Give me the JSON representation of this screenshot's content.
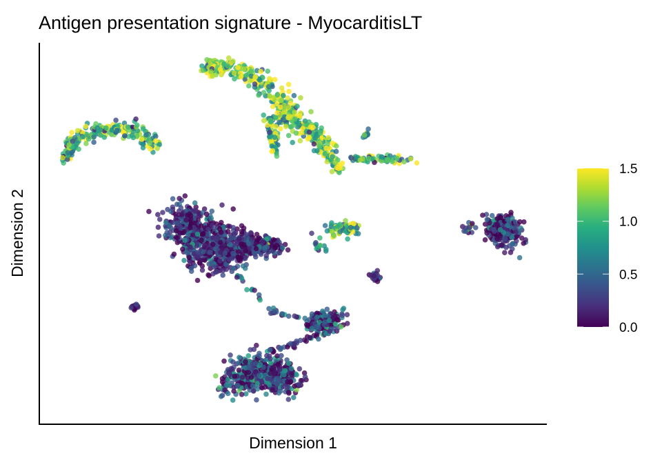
{
  "chart_data": {
    "type": "scatter",
    "title": "Antigen presentation signature - MyocarditisLT",
    "xlabel": "Dimension 1",
    "ylabel": "Dimension 2",
    "xlim": [
      0,
      100
    ],
    "ylim": [
      0,
      100
    ],
    "grid": false,
    "legend": {
      "placement": "right",
      "type": "colorbar",
      "colormap": "viridis",
      "range": [
        0,
        1.5
      ],
      "ticks": [
        0.0,
        0.5,
        1.0,
        1.5
      ],
      "tick_labels": [
        "0.0",
        "0.5",
        "1.0",
        "1.5"
      ]
    },
    "clusters": [
      {
        "name": "top-left-arc",
        "count": 220,
        "value_mean": 1.0,
        "value_sd": 0.45,
        "path": [
          [
            5.2,
            69.6,
            1.4
          ],
          [
            7.2,
            75,
            1.5
          ],
          [
            12.6,
            76.9,
            1.5
          ],
          [
            18.8,
            76.9,
            1.5
          ],
          [
            22.8,
            73.2,
            1.3
          ]
        ]
      },
      {
        "name": "top-large",
        "count": 480,
        "value_mean": 1.2,
        "value_sd": 0.4,
        "path": [
          [
            32.3,
            93.1,
            1.4
          ],
          [
            37,
            94,
            1.6
          ],
          [
            43.9,
            90.4,
            2
          ],
          [
            47.3,
            84.1,
            2.3
          ],
          [
            49.3,
            80.5,
            2.2
          ],
          [
            53.4,
            76.9,
            2
          ],
          [
            56.1,
            73.2,
            1.5
          ],
          [
            58.8,
            66.9,
            1
          ]
        ]
      },
      {
        "name": "top-large-branch",
        "count": 60,
        "value_mean": 1.1,
        "value_sd": 0.4,
        "path": [
          [
            45.2,
            80.5,
            1
          ],
          [
            46.6,
            71.4,
            0.8
          ]
        ]
      },
      {
        "name": "right-strip",
        "count": 70,
        "value_mean": 0.9,
        "value_sd": 0.4,
        "path": [
          [
            61.5,
            69.6,
            0.6
          ],
          [
            67.5,
            69.4,
            0.7
          ],
          [
            73.8,
            69.3,
            0.8
          ]
        ]
      },
      {
        "name": "isolated-top",
        "count": 12,
        "value_mean": 0.7,
        "value_sd": 0.4,
        "path": [
          [
            64.3,
            75.9,
            0.6
          ]
        ]
      },
      {
        "name": "large-left",
        "count": 900,
        "value_mean": 0.2,
        "value_sd": 0.3,
        "path": [
          [
            27,
            53,
            3.5
          ],
          [
            31,
            52,
            4.5
          ],
          [
            33,
            45,
            4.5
          ],
          [
            36,
            46,
            4
          ],
          [
            41,
            47,
            2.5
          ],
          [
            47,
            47,
            1.2
          ]
        ]
      },
      {
        "name": "strand",
        "count": 30,
        "value_mean": 0.3,
        "value_sd": 0.3,
        "path": [
          [
            39.1,
            38.9,
            0.5
          ],
          [
            45.9,
            29.8,
            0.5
          ],
          [
            50.7,
            28,
            0.5
          ]
        ]
      },
      {
        "name": "bottom-right",
        "count": 160,
        "value_mean": 0.3,
        "value_sd": 0.35,
        "path": [
          [
            53.4,
            26.2,
            1.4
          ],
          [
            58.8,
            27.1,
            2.2
          ]
        ]
      },
      {
        "name": "connector",
        "count": 40,
        "value_mean": 0.3,
        "value_sd": 0.3,
        "path": [
          [
            57.5,
            24.4,
            0.6
          ],
          [
            45.2,
            19,
            0.6
          ]
        ]
      },
      {
        "name": "bottom",
        "count": 520,
        "value_mean": 0.3,
        "value_sd": 0.35,
        "path": [
          [
            38.5,
            11.8,
            3.3
          ],
          [
            43.9,
            13.6,
            3.6
          ],
          [
            49.3,
            11.8,
            2.6
          ]
        ]
      },
      {
        "name": "right-blob",
        "count": 230,
        "value_mean": 0.25,
        "value_sd": 0.3,
        "path": [
          [
            91.4,
            50.6,
            3
          ]
        ]
      },
      {
        "name": "right-blob-edge",
        "count": 15,
        "value_mean": 0.4,
        "value_sd": 0.4,
        "path": [
          [
            84.6,
            51.5,
            0.9
          ]
        ]
      },
      {
        "name": "middle-small",
        "count": 70,
        "value_mean": 1.0,
        "value_sd": 0.45,
        "path": [
          [
            57.5,
            51.2,
            1.5
          ],
          [
            62.5,
            51.5,
            1.2
          ]
        ]
      },
      {
        "name": "middle-scatter",
        "count": 14,
        "value_mean": 0.7,
        "value_sd": 0.4,
        "path": [
          [
            55.5,
            47,
            1.8
          ]
        ]
      },
      {
        "name": "small-mid-low",
        "count": 30,
        "value_mean": 0.2,
        "value_sd": 0.2,
        "path": [
          [
            66.3,
            38.5,
            0.7
          ]
        ]
      },
      {
        "name": "small-left-low",
        "count": 20,
        "value_mean": 0.1,
        "value_sd": 0.1,
        "path": [
          [
            18.8,
            30.7,
            0.7
          ]
        ]
      }
    ]
  }
}
